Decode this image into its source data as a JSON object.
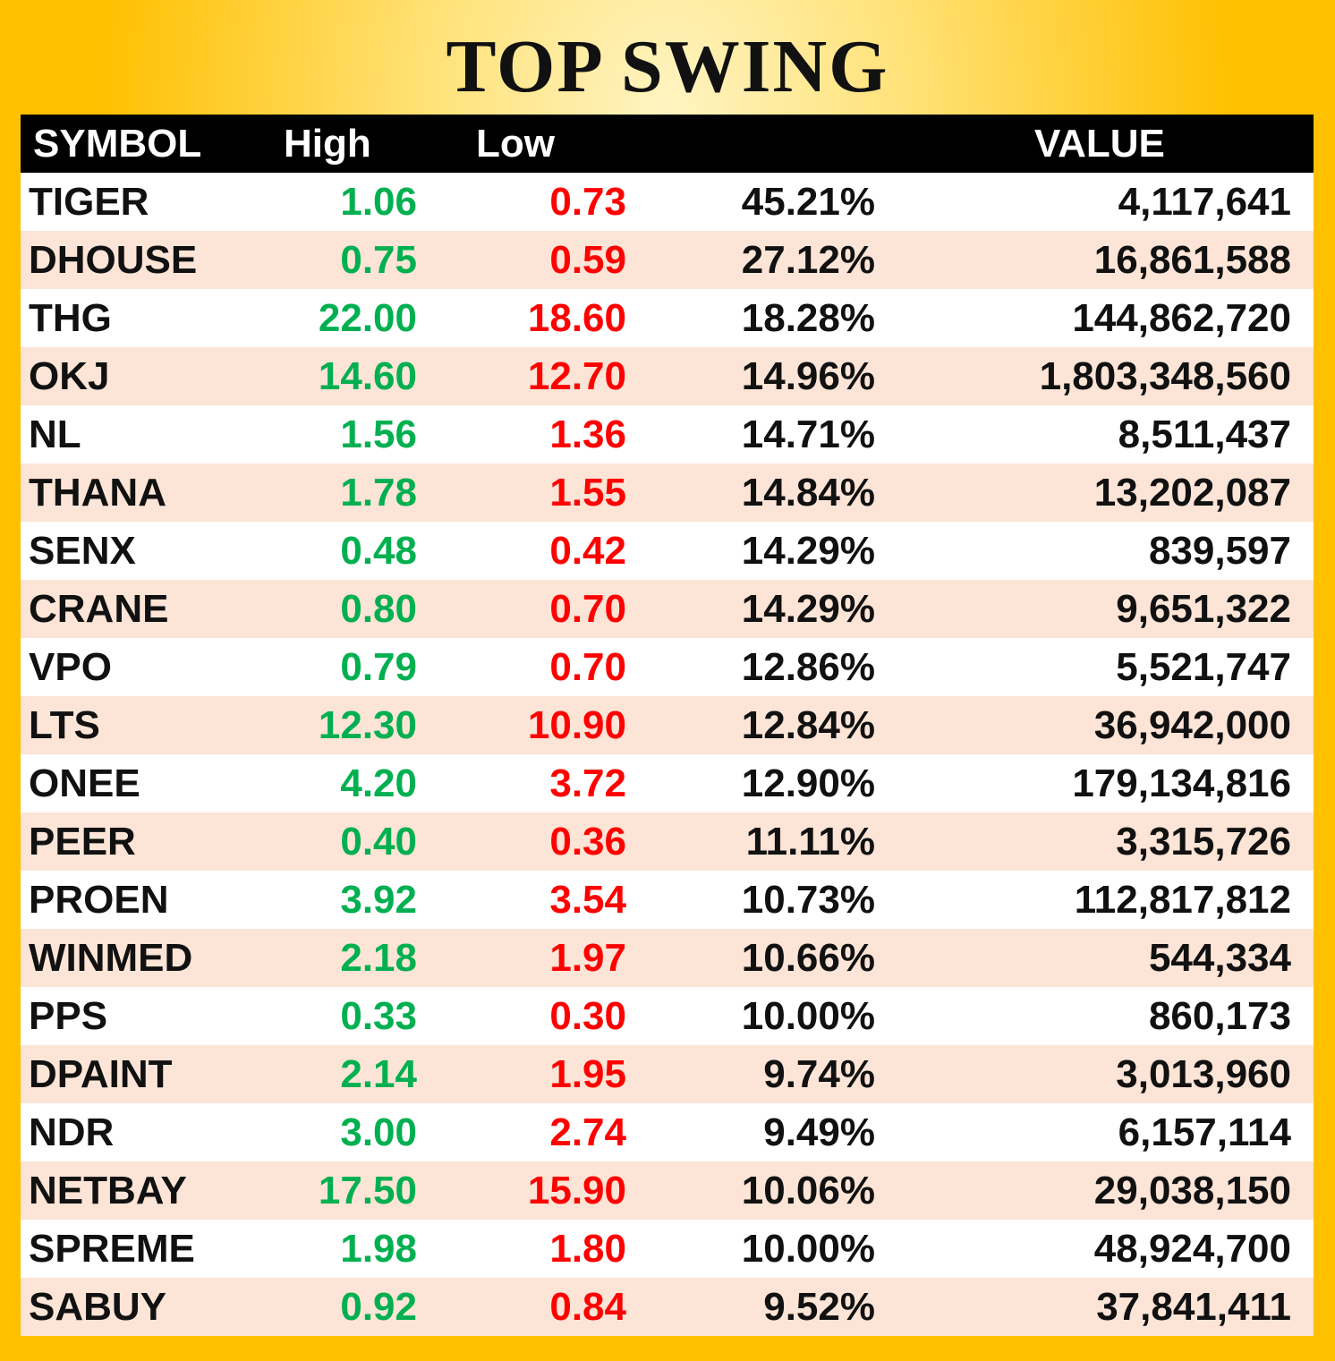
{
  "title": "TOP SWING",
  "columns": {
    "symbol": "SYMBOL",
    "high": "High",
    "low": "Low",
    "change": "",
    "value": "VALUE"
  },
  "rows": [
    {
      "symbol": "TIGER",
      "high": "1.06",
      "low": "0.73",
      "change": "45.21%",
      "value": "4,117,641"
    },
    {
      "symbol": "DHOUSE",
      "high": "0.75",
      "low": "0.59",
      "change": "27.12%",
      "value": "16,861,588"
    },
    {
      "symbol": "THG",
      "high": "22.00",
      "low": "18.60",
      "change": "18.28%",
      "value": "144,862,720"
    },
    {
      "symbol": "OKJ",
      "high": "14.60",
      "low": "12.70",
      "change": "14.96%",
      "value": "1,803,348,560"
    },
    {
      "symbol": "NL",
      "high": "1.56",
      "low": "1.36",
      "change": "14.71%",
      "value": "8,511,437"
    },
    {
      "symbol": "THANA",
      "high": "1.78",
      "low": "1.55",
      "change": "14.84%",
      "value": "13,202,087"
    },
    {
      "symbol": "SENX",
      "high": "0.48",
      "low": "0.42",
      "change": "14.29%",
      "value": "839,597"
    },
    {
      "symbol": "CRANE",
      "high": "0.80",
      "low": "0.70",
      "change": "14.29%",
      "value": "9,651,322"
    },
    {
      "symbol": "VPO",
      "high": "0.79",
      "low": "0.70",
      "change": "12.86%",
      "value": "5,521,747"
    },
    {
      "symbol": "LTS",
      "high": "12.30",
      "low": "10.90",
      "change": "12.84%",
      "value": "36,942,000"
    },
    {
      "symbol": "ONEE",
      "high": "4.20",
      "low": "3.72",
      "change": "12.90%",
      "value": "179,134,816"
    },
    {
      "symbol": "PEER",
      "high": "0.40",
      "low": "0.36",
      "change": "11.11%",
      "value": "3,315,726"
    },
    {
      "symbol": "PROEN",
      "high": "3.92",
      "low": "3.54",
      "change": "10.73%",
      "value": "112,817,812"
    },
    {
      "symbol": "WINMED",
      "high": "2.18",
      "low": "1.97",
      "change": "10.66%",
      "value": "544,334"
    },
    {
      "symbol": "PPS",
      "high": "0.33",
      "low": "0.30",
      "change": "10.00%",
      "value": "860,173"
    },
    {
      "symbol": "DPAINT",
      "high": "2.14",
      "low": "1.95",
      "change": "9.74%",
      "value": "3,013,960"
    },
    {
      "symbol": "NDR",
      "high": "3.00",
      "low": "2.74",
      "change": "9.49%",
      "value": "6,157,114"
    },
    {
      "symbol": "NETBAY",
      "high": "17.50",
      "low": "15.90",
      "change": "10.06%",
      "value": "29,038,150"
    },
    {
      "symbol": "SPREME",
      "high": "1.98",
      "low": "1.80",
      "change": "10.00%",
      "value": "48,924,700"
    },
    {
      "symbol": "SABUY",
      "high": "0.92",
      "low": "0.84",
      "change": "9.52%",
      "value": "37,841,411"
    }
  ],
  "colors": {
    "frame": "#ffc000",
    "header_bg": "#000000",
    "stripe": "#fce4d6",
    "high": "#00b050",
    "low": "#ff0000"
  }
}
